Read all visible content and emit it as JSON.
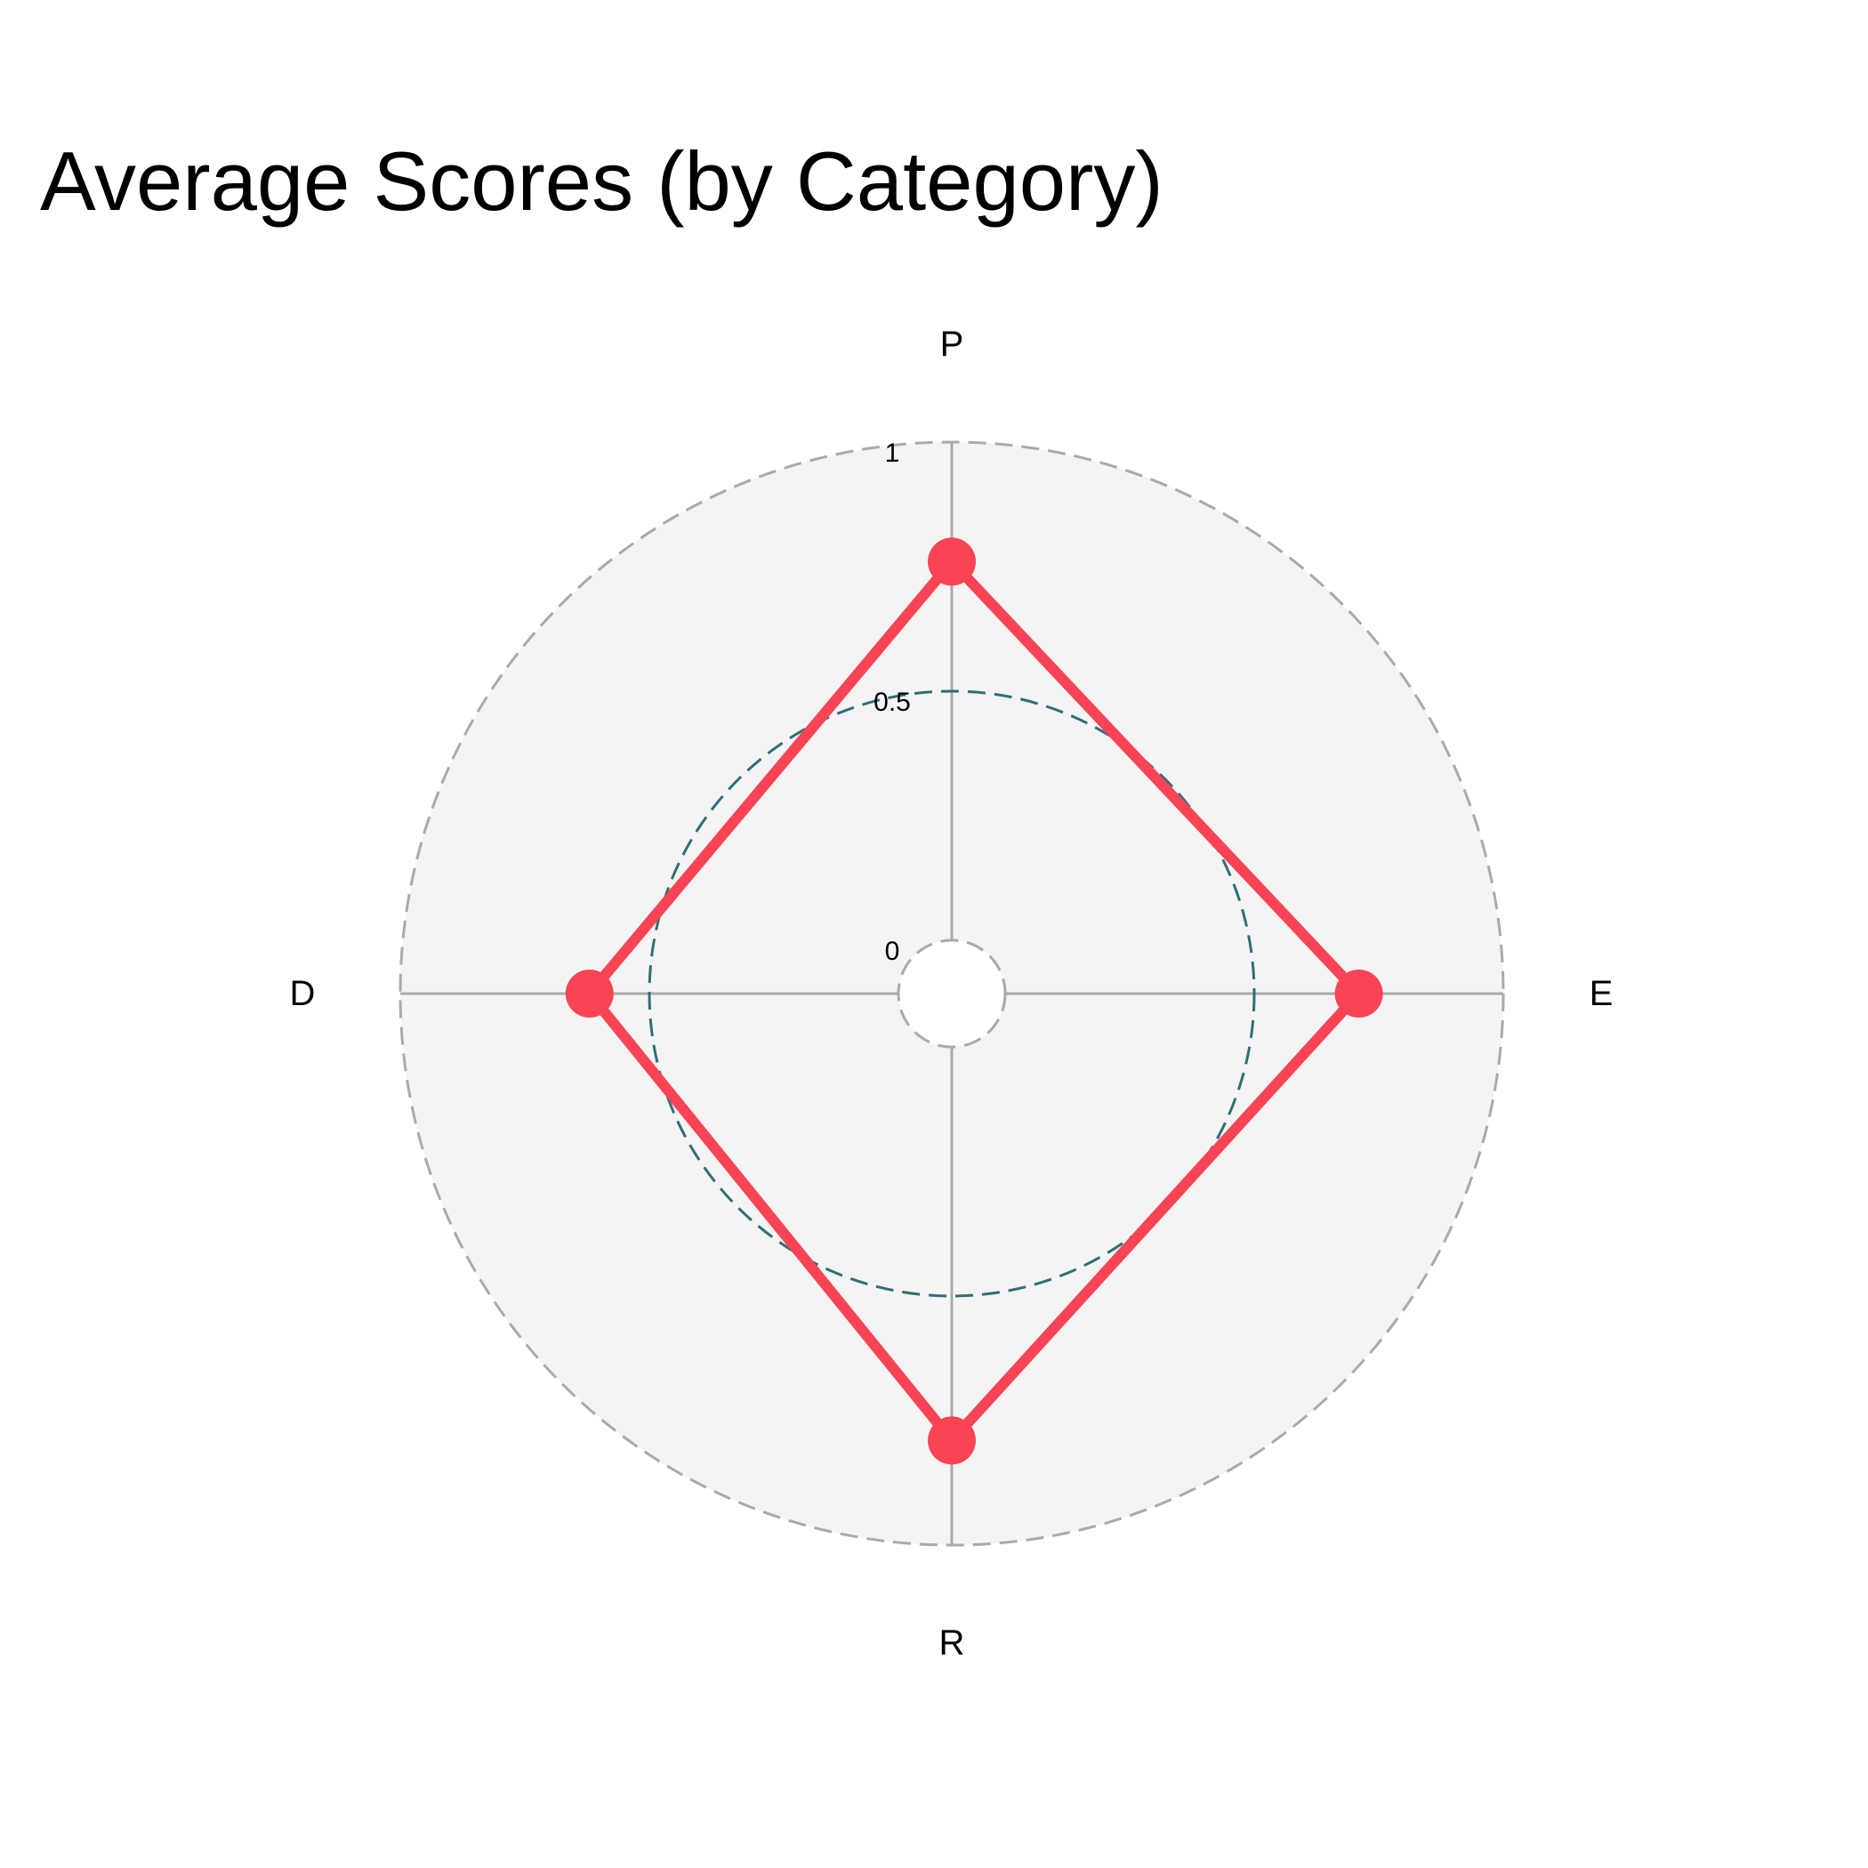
{
  "chart_data": {
    "type": "radar",
    "title": "Average Scores (by Category)",
    "categories": [
      "P",
      "E",
      "R",
      "D"
    ],
    "series": [
      {
        "values": [
          0.76,
          0.71,
          0.79,
          0.62
        ]
      }
    ],
    "radial_axis": {
      "range": [
        0,
        1
      ],
      "ticks": [
        0,
        0.5,
        1
      ],
      "tick_labels": [
        "0",
        "0.5",
        "1"
      ]
    },
    "grid": true,
    "legend": false,
    "colors": {
      "series": "#f94455",
      "plot_background": "#f4f4f4",
      "grid": "#aaaaaa",
      "highlight_ring": "#2f6f77"
    }
  }
}
